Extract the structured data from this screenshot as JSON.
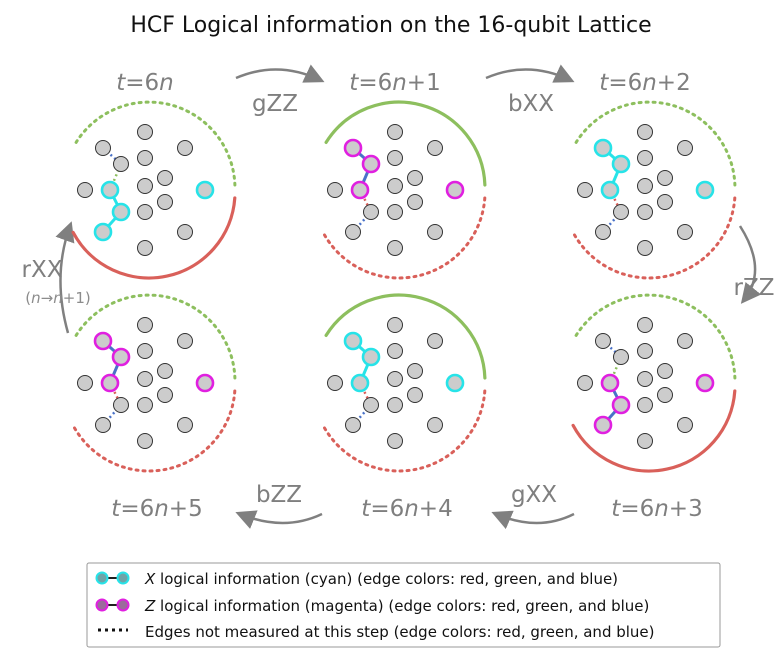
{
  "title": "HCF Logical information on the 16-qubit Lattice",
  "colors": {
    "cyan": "#27e3e8",
    "magenta": "#e020e0",
    "red": "#d9605a",
    "green": "#8dbf5e",
    "blue": "#4a72c8",
    "qubit_fill": "#cccccc",
    "arrow": "#808080"
  },
  "panels": [
    {
      "label_t": "t",
      "label_rest": "=6",
      "label_n": "n",
      "label_suffix": "",
      "solid": "red",
      "active": "cyan"
    },
    {
      "label_t": "t",
      "label_rest": "=6",
      "label_n": "n",
      "label_suffix": "+1",
      "solid": "green",
      "active": "magenta"
    },
    {
      "label_t": "t",
      "label_rest": "=6",
      "label_n": "n",
      "label_suffix": "+2",
      "solid": "none",
      "active": "cyan"
    },
    {
      "label_t": "t",
      "label_rest": "=6",
      "label_n": "n",
      "label_suffix": "+5",
      "solid": "none",
      "active": "magenta"
    },
    {
      "label_t": "t",
      "label_rest": "=6",
      "label_n": "n",
      "label_suffix": "+4",
      "solid": "green",
      "active": "cyan"
    },
    {
      "label_t": "t",
      "label_rest": "=6",
      "label_n": "n",
      "label_suffix": "+3",
      "solid": "red",
      "active": "magenta"
    }
  ],
  "operations": {
    "gZZ": "gZZ",
    "bXX": "bXX",
    "rZZ": "rZZ",
    "gXX": "gXX",
    "bZZ": "bZZ",
    "rXX": "rXX",
    "rXX_sub_open": "(",
    "rXX_sub_n1": "n",
    "rXX_sub_arrow": "→",
    "rXX_sub_n2": "n",
    "rXX_sub_close": "+1)"
  },
  "legend": {
    "x_letter": "X",
    "x_text": " logical information (cyan) (edge colors: red, green, and blue)",
    "z_letter": "Z",
    "z_text": " logical information (magenta) (edge colors: red, green, and blue)",
    "dots_text": "Edges not measured at this step (edge colors: red, green, and blue)"
  }
}
